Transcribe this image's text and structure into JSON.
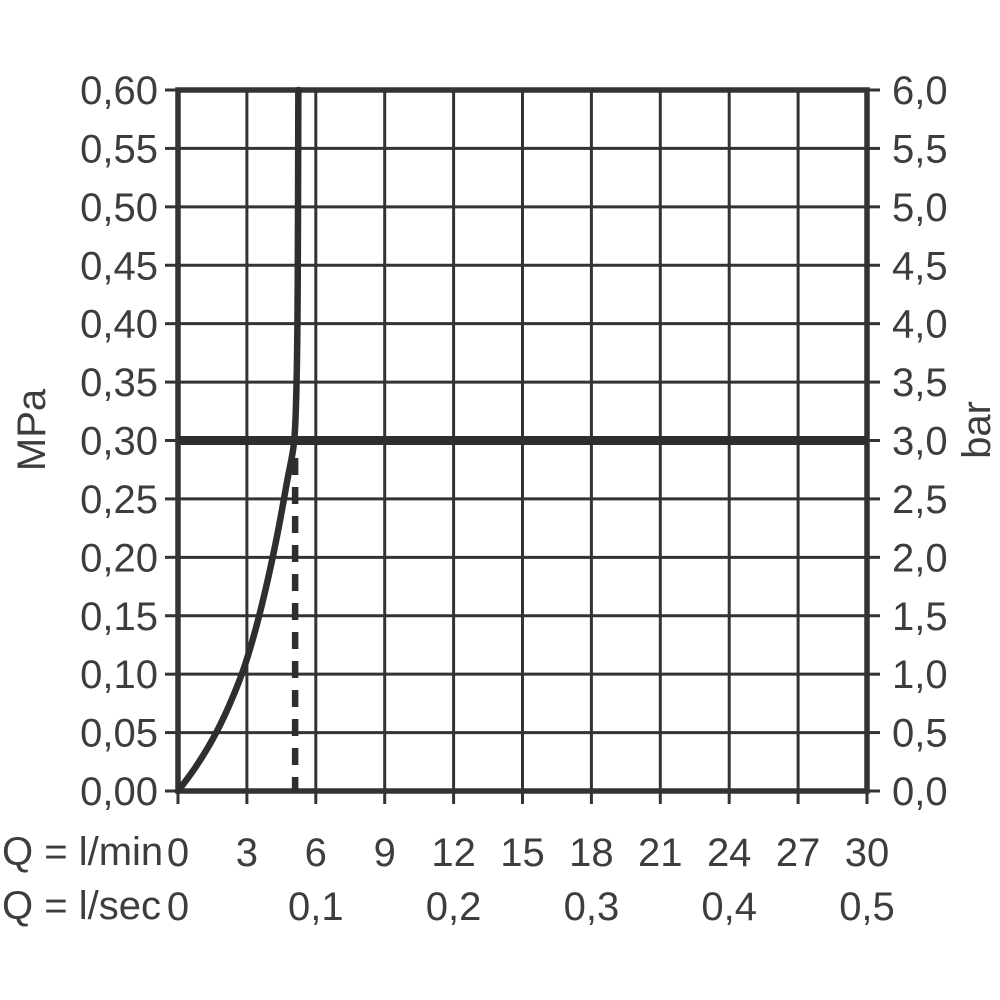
{
  "chart_data": {
    "type": "line",
    "title": "",
    "x_axis": {
      "range_lmin": [
        0,
        30
      ],
      "grid_step_lmin": 3,
      "lmin": {
        "label": "Q = l/min",
        "tick_values": [
          0,
          3,
          6,
          9,
          12,
          15,
          18,
          21,
          24,
          27,
          30
        ],
        "tick_labels": [
          "0",
          "3",
          "6",
          "9",
          "12",
          "15",
          "18",
          "21",
          "24",
          "27",
          "30"
        ]
      },
      "lsec": {
        "label": "Q = l/sec",
        "tick_values_lmin": [
          0,
          6,
          12,
          18,
          24,
          30
        ],
        "tick_labels": [
          "0",
          "0,1",
          "0,2",
          "0,3",
          "0,4",
          "0,5"
        ]
      }
    },
    "y_axis_left": {
      "label": "MPa",
      "range": [
        0,
        0.6
      ],
      "grid_step": 0.05,
      "tick_labels": [
        "0,60",
        "0,55",
        "0,50",
        "0,45",
        "0,40",
        "0,35",
        "0,30",
        "0,25",
        "0,20",
        "0,15",
        "0,10",
        "0,05",
        "0,00"
      ]
    },
    "y_axis_right": {
      "label": "bar",
      "range": [
        0,
        6
      ],
      "tick_labels": [
        "6,0",
        "5,5",
        "5,0",
        "4,5",
        "4,0",
        "3,5",
        "3,0",
        "2,5",
        "2,0",
        "1,5",
        "1,0",
        "0,5",
        "0,0"
      ]
    },
    "series": [
      {
        "name": "flow-characteristic-curve",
        "points_lmin_mpa": [
          [
            0,
            0
          ],
          [
            0.75,
            0.02
          ],
          [
            1.5,
            0.044
          ],
          [
            2.2,
            0.072
          ],
          [
            2.85,
            0.104
          ],
          [
            3.4,
            0.14
          ],
          [
            3.9,
            0.18
          ],
          [
            4.35,
            0.222
          ],
          [
            4.75,
            0.265
          ],
          [
            5.05,
            0.298
          ],
          [
            5.15,
            0.34
          ],
          [
            5.2,
            0.4
          ],
          [
            5.22,
            0.47
          ],
          [
            5.23,
            0.53
          ],
          [
            5.24,
            0.6
          ]
        ]
      }
    ],
    "reference_lines": {
      "horizontal_pressure_mpa": 0.3,
      "horizontal_pressure_bar": 3.0,
      "vertical_dashed_lmin": 5.1,
      "vertical_dashed_top_mpa": 0.285
    },
    "grid": {
      "visible": true
    },
    "legend": {
      "visible": false
    },
    "style": {
      "line_color": "#333333",
      "heavy_line_color": "#2e2e2e",
      "text_color": "#3d3d3d",
      "background": "#ffffff"
    }
  }
}
